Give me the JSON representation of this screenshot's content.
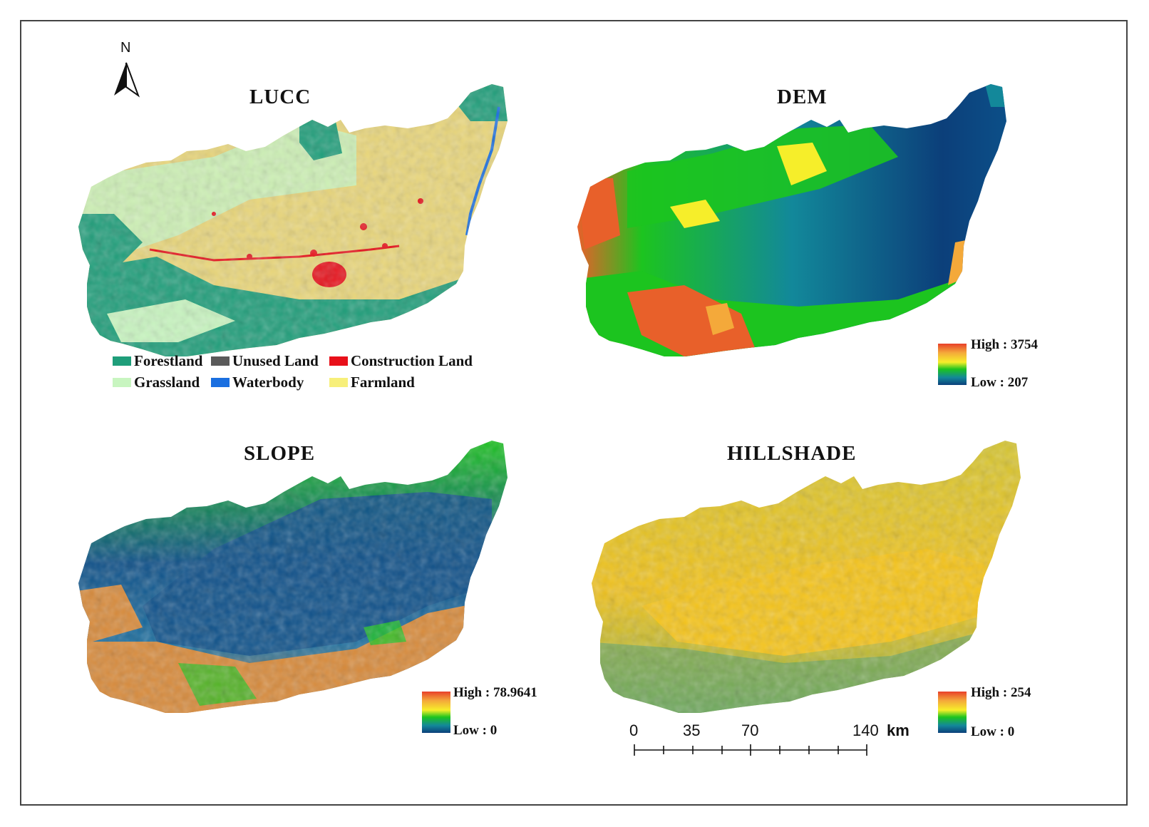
{
  "panels": {
    "lucc": {
      "title": "LUCC"
    },
    "dem": {
      "title": "DEM",
      "ramp": {
        "high": "High : 3754",
        "low": "Low : 207"
      }
    },
    "slope": {
      "title": "SLOPE",
      "ramp": {
        "high": "High : 78.9641",
        "low": "Low : 0"
      }
    },
    "hillshade": {
      "title": "HILLSHADE",
      "ramp": {
        "high": "High : 254",
        "low": "Low : 0"
      }
    }
  },
  "north_arrow": {
    "label": "N"
  },
  "lucc_legend": [
    {
      "label": "Forestland",
      "color": "#1f9e7a"
    },
    {
      "label": "Unused Land",
      "color": "#5a5a5a"
    },
    {
      "label": "Construction Land",
      "color": "#e8101a"
    },
    {
      "label": "Grassland",
      "color": "#c8f5c0"
    },
    {
      "label": "Waterbody",
      "color": "#1a6fe0"
    },
    {
      "label": "Farmland",
      "color": "#f7ef7a"
    }
  ],
  "scale_bar": {
    "ticks": [
      "0",
      "35",
      "70",
      "140"
    ],
    "unit": "km"
  },
  "colors": {
    "lucc_base": "#e9d67a",
    "lucc_forest": "#1f9e7a",
    "dem_low": "#0c3f7a",
    "dem_mid": "#1cc41f",
    "dem_high": "#e8602a",
    "slope_low": "#0d4f88",
    "slope_high": "#d88a3a",
    "hillshade_base": "#f2c21a"
  }
}
